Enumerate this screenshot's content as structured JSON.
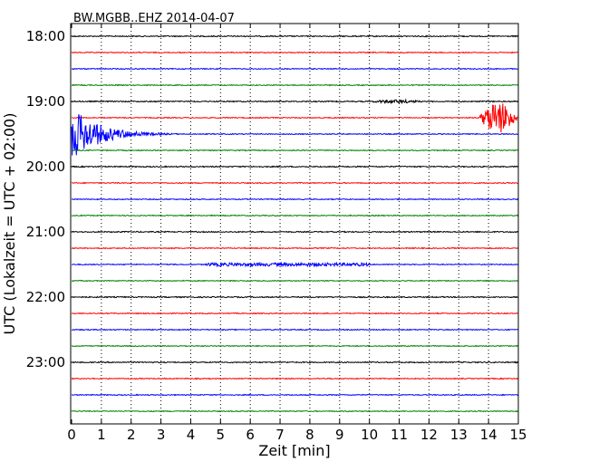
{
  "chart_data": {
    "type": "line",
    "title": "BW.MGBB..EHZ 2014-04-07",
    "xlabel": "Zeit  [min]",
    "ylabel": "UTC (Lokalzeit = UTC + 02:00)",
    "xlim": [
      0,
      15
    ],
    "x_ticks": [
      "0",
      "1",
      "2",
      "3",
      "4",
      "5",
      "6",
      "7",
      "8",
      "9",
      "10",
      "11",
      "12",
      "13",
      "14",
      "15"
    ],
    "y_ticks": [
      "18:00",
      "19:00",
      "20:00",
      "21:00",
      "22:00",
      "23:00"
    ],
    "grid": "vertical dotted",
    "colors": [
      "#000000",
      "#ff0000",
      "#0000ff",
      "#008000"
    ],
    "series": [
      {
        "start": "18:00",
        "color": "#000000",
        "noise": 0.6
      },
      {
        "start": "18:15",
        "color": "#ff0000",
        "noise": 0.5
      },
      {
        "start": "18:30",
        "color": "#0000ff",
        "noise": 0.5
      },
      {
        "start": "18:45",
        "color": "#008000",
        "noise": 0.5
      },
      {
        "start": "19:00",
        "color": "#000000",
        "noise": 0.6,
        "events": [
          {
            "t0": 9.8,
            "t1": 12.0,
            "amp": 2
          }
        ]
      },
      {
        "start": "19:15",
        "color": "#ff0000",
        "noise": 0.5,
        "events": [
          {
            "t0": 13.65,
            "t1": 15.0,
            "amp": 18,
            "decay": false
          }
        ]
      },
      {
        "start": "19:30",
        "color": "#0000ff",
        "noise": 0.5,
        "events": [
          {
            "t0": 0.0,
            "t1": 4.0,
            "amp": 30,
            "decay": true
          }
        ]
      },
      {
        "start": "19:45",
        "color": "#008000",
        "noise": 0.5
      },
      {
        "start": "20:00",
        "color": "#000000",
        "noise": 0.6
      },
      {
        "start": "20:15",
        "color": "#ff0000",
        "noise": 0.5
      },
      {
        "start": "20:30",
        "color": "#0000ff",
        "noise": 0.5
      },
      {
        "start": "20:45",
        "color": "#008000",
        "noise": 0.5
      },
      {
        "start": "21:00",
        "color": "#000000",
        "noise": 0.6
      },
      {
        "start": "21:15",
        "color": "#ff0000",
        "noise": 0.5
      },
      {
        "start": "21:30",
        "color": "#0000ff",
        "noise": 0.5,
        "events": [
          {
            "t0": 4.5,
            "t1": 10.0,
            "amp": 1.8
          }
        ]
      },
      {
        "start": "21:45",
        "color": "#008000",
        "noise": 0.5
      },
      {
        "start": "22:00",
        "color": "#000000",
        "noise": 0.6
      },
      {
        "start": "22:15",
        "color": "#ff0000",
        "noise": 0.5
      },
      {
        "start": "22:30",
        "color": "#0000ff",
        "noise": 0.5
      },
      {
        "start": "22:45",
        "color": "#008000",
        "noise": 0.5
      },
      {
        "start": "23:00",
        "color": "#000000",
        "noise": 0.6
      },
      {
        "start": "23:15",
        "color": "#ff0000",
        "noise": 0.5
      },
      {
        "start": "23:30",
        "color": "#0000ff",
        "noise": 0.5
      },
      {
        "start": "23:45",
        "color": "#008000",
        "noise": 0.5
      }
    ]
  }
}
